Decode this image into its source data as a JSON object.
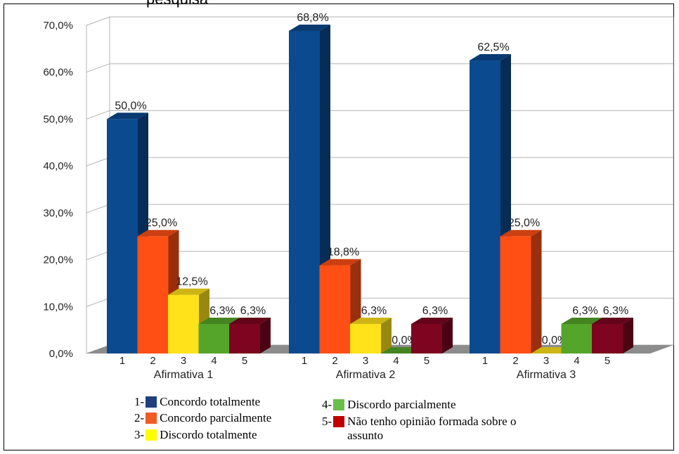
{
  "cut_title": "pesquisa",
  "chart_data": {
    "type": "bar",
    "categories": [
      "Afirmativa 1",
      "Afirmativa 2",
      "Afirmativa 3"
    ],
    "bar_labels": [
      "1",
      "2",
      "3",
      "4",
      "5"
    ],
    "series": [
      {
        "values": [
          50.0,
          68.8,
          62.5
        ],
        "labels": [
          "50,0%",
          "68,8%",
          "62,5%"
        ],
        "color": "#0b4a8f"
      },
      {
        "values": [
          25.0,
          18.8,
          25.0
        ],
        "labels": [
          "25,0%",
          "18,8%",
          "25,0%"
        ],
        "color": "#ff4f14"
      },
      {
        "values": [
          12.5,
          6.3,
          0.0
        ],
        "labels": [
          "12,5%",
          "6,3%",
          "0,0%"
        ],
        "color": "#ffe21a"
      },
      {
        "values": [
          6.3,
          0.0,
          6.3
        ],
        "labels": [
          "6,3%",
          "0,0%",
          "6,3%"
        ],
        "color": "#55a52a"
      },
      {
        "values": [
          6.3,
          6.3,
          6.3
        ],
        "labels": [
          "6,3%",
          "6,3%",
          "6,3%"
        ],
        "color": "#7d0520"
      }
    ],
    "ylim": [
      0,
      70
    ],
    "yticks": [
      "0,0%",
      "10,0%",
      "20,0%",
      "30,0%",
      "40,0%",
      "50,0%",
      "60,0%",
      "70,0%"
    ],
    "grid": true,
    "legend_position": "bottom"
  },
  "legend": [
    {
      "num": "1-",
      "text": "Concordo totalmente",
      "color": "#1f3f80"
    },
    {
      "num": "2-",
      "text": "Concordo parcialmente",
      "color": "#f05a23"
    },
    {
      "num": "3-",
      "text": "Discordo totalmente",
      "color": "#ffff00"
    },
    {
      "num": "4-",
      "text": "Discordo parcialmente",
      "color": "#6abf4b"
    },
    {
      "num": "5-",
      "text": "Não tenho opinião formada sobre o",
      "text2": "assunto",
      "color": "#c00000"
    }
  ]
}
